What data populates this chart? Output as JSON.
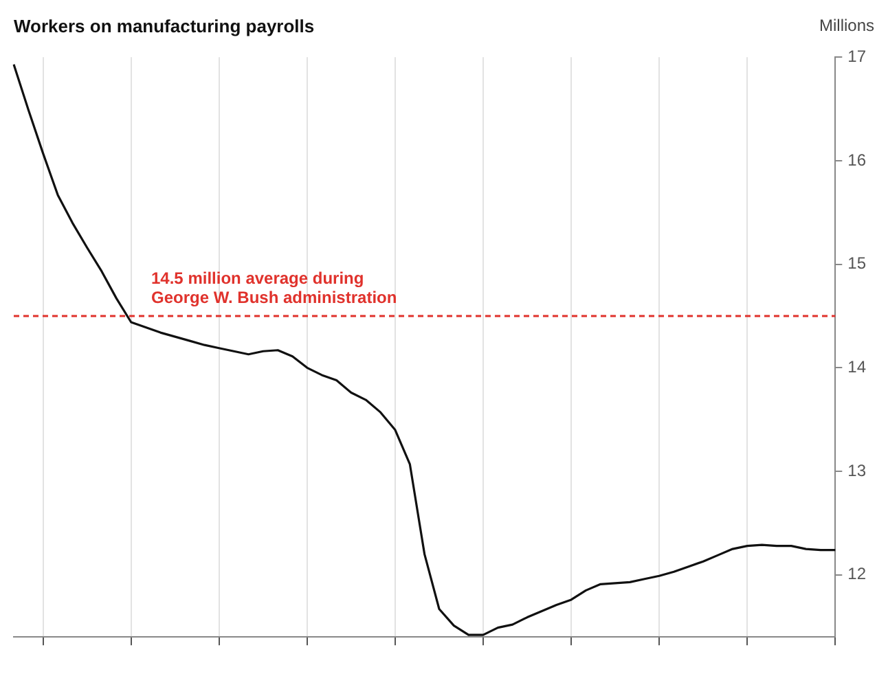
{
  "chart_data": {
    "type": "line",
    "title": "Workers on manufacturing payrolls",
    "ylabel": "Millions",
    "categories": [
      null,
      null,
      null,
      null,
      null,
      null,
      null,
      null,
      null,
      null,
      null,
      null,
      null,
      null,
      null,
      null,
      null,
      null,
      null,
      null,
      null,
      null,
      null,
      null,
      null,
      null,
      null,
      null,
      null,
      null,
      null,
      null,
      null,
      null,
      null,
      null,
      null,
      null,
      null,
      null,
      null,
      null,
      null,
      null,
      null,
      null,
      null,
      null,
      null,
      null,
      null,
      null,
      null,
      null,
      null,
      null,
      null
    ],
    "series": [
      {
        "color": "#111111",
        "values": [
          16.93,
          16.49,
          16.07,
          15.67,
          15.4,
          15.16,
          14.93,
          14.67,
          14.44,
          14.39,
          14.34,
          14.3,
          14.26,
          14.22,
          14.19,
          14.16,
          14.13,
          14.16,
          14.17,
          14.11,
          14.0,
          13.93,
          13.88,
          13.76,
          13.69,
          13.57,
          13.4,
          13.07,
          12.2,
          11.67,
          11.51,
          11.42,
          11.42,
          11.49,
          11.52,
          11.59,
          11.65,
          11.71,
          11.76,
          11.85,
          11.91,
          11.92,
          11.93,
          11.96,
          11.99,
          12.03,
          12.08,
          12.13,
          12.19,
          12.25,
          12.28,
          12.29,
          12.28,
          12.28,
          12.25,
          12.24,
          12.24
        ]
      }
    ],
    "ylim": [
      11.4,
      17
    ],
    "yticks": [
      12,
      13,
      14,
      15,
      16,
      17
    ],
    "ref_lines": [
      {
        "axis": "y",
        "value": 14.5,
        "label": "14.5 million average during George W. Bush administration",
        "color": "#e0322c",
        "line_style": "dashed"
      }
    ],
    "grid": "x",
    "legend": false,
    "marker": "none",
    "line_style": "solid"
  }
}
